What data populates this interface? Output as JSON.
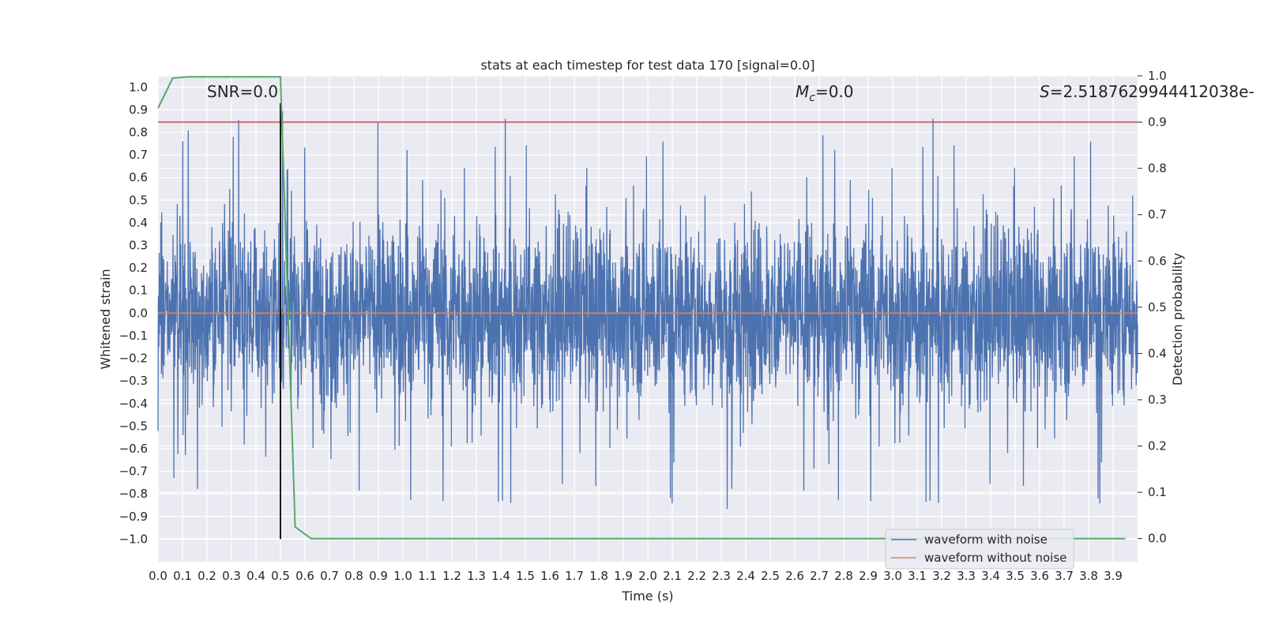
{
  "chart_data": {
    "type": "line",
    "title": "stats at each timestep for test data 170 [signal=0.0]",
    "xlabel": "Time (s)",
    "ylabel": "Whitened strain",
    "y2label": "Detection probability",
    "xlim": [
      0.0,
      4.0
    ],
    "ylim": [
      -1.1,
      1.05
    ],
    "y2lim": [
      -0.05,
      1.0
    ],
    "x_ticks": [
      "0.0",
      "0.1",
      "0.2",
      "0.3",
      "0.4",
      "0.5",
      "0.6",
      "0.7",
      "0.8",
      "0.9",
      "1.0",
      "1.1",
      "1.2",
      "1.3",
      "1.4",
      "1.5",
      "1.6",
      "1.7",
      "1.8",
      "1.9",
      "2.0",
      "2.1",
      "2.2",
      "2.3",
      "2.4",
      "2.5",
      "2.6",
      "2.7",
      "2.8",
      "2.9",
      "3.0",
      "3.1",
      "3.2",
      "3.3",
      "3.4",
      "3.5",
      "3.6",
      "3.7",
      "3.8",
      "3.9"
    ],
    "y_ticks": [
      "1.0",
      "0.9",
      "0.8",
      "0.7",
      "0.6",
      "0.5",
      "0.4",
      "0.3",
      "0.2",
      "0.1",
      "0.0",
      "−0.1",
      "−0.2",
      "−0.3",
      "−0.4",
      "−0.5",
      "−0.6",
      "−0.7",
      "−0.8",
      "−0.9",
      "−1.0"
    ],
    "y2_ticks": [
      "1.0",
      "0.9",
      "0.8",
      "0.7",
      "0.6",
      "0.5",
      "0.4",
      "0.3",
      "0.2",
      "0.1",
      "0.0"
    ],
    "annotations": {
      "snr": "SNR=0.0",
      "mc_symbol": "M",
      "mc_sub": "c",
      "mc_value": "=0.0",
      "s_symbol": "S",
      "s_value": "=2.518762994441203​8e-"
    },
    "series": [
      {
        "name": "waveform with noise",
        "color": "#4c72b0",
        "axis": "left",
        "description_values": "dense noise approx. ±0.4, peaks to about 0.93 and -0.95"
      },
      {
        "name": "waveform without noise",
        "color": "#dd8452",
        "axis": "left",
        "values_constant": 0.0
      },
      {
        "axis": "right",
        "color": "#55a868",
        "x": [
          0.0,
          0.06,
          0.12,
          0.5,
          0.56,
          0.625,
          3.95
        ],
        "y": [
          0.93,
          0.995,
          0.998,
          0.998,
          0.025,
          0.0,
          0.0
        ]
      }
    ],
    "threshold_line": {
      "axis": "right",
      "value": 0.9,
      "color": "#c44e52"
    },
    "vertical_marker": {
      "x": 0.5,
      "y_range": [
        -1.0,
        0.93
      ],
      "color": "#000000"
    },
    "legend_position": "lower right",
    "grid": true
  },
  "colors": {
    "plot_background": "#eaeaf2",
    "grid": "#ffffff"
  }
}
